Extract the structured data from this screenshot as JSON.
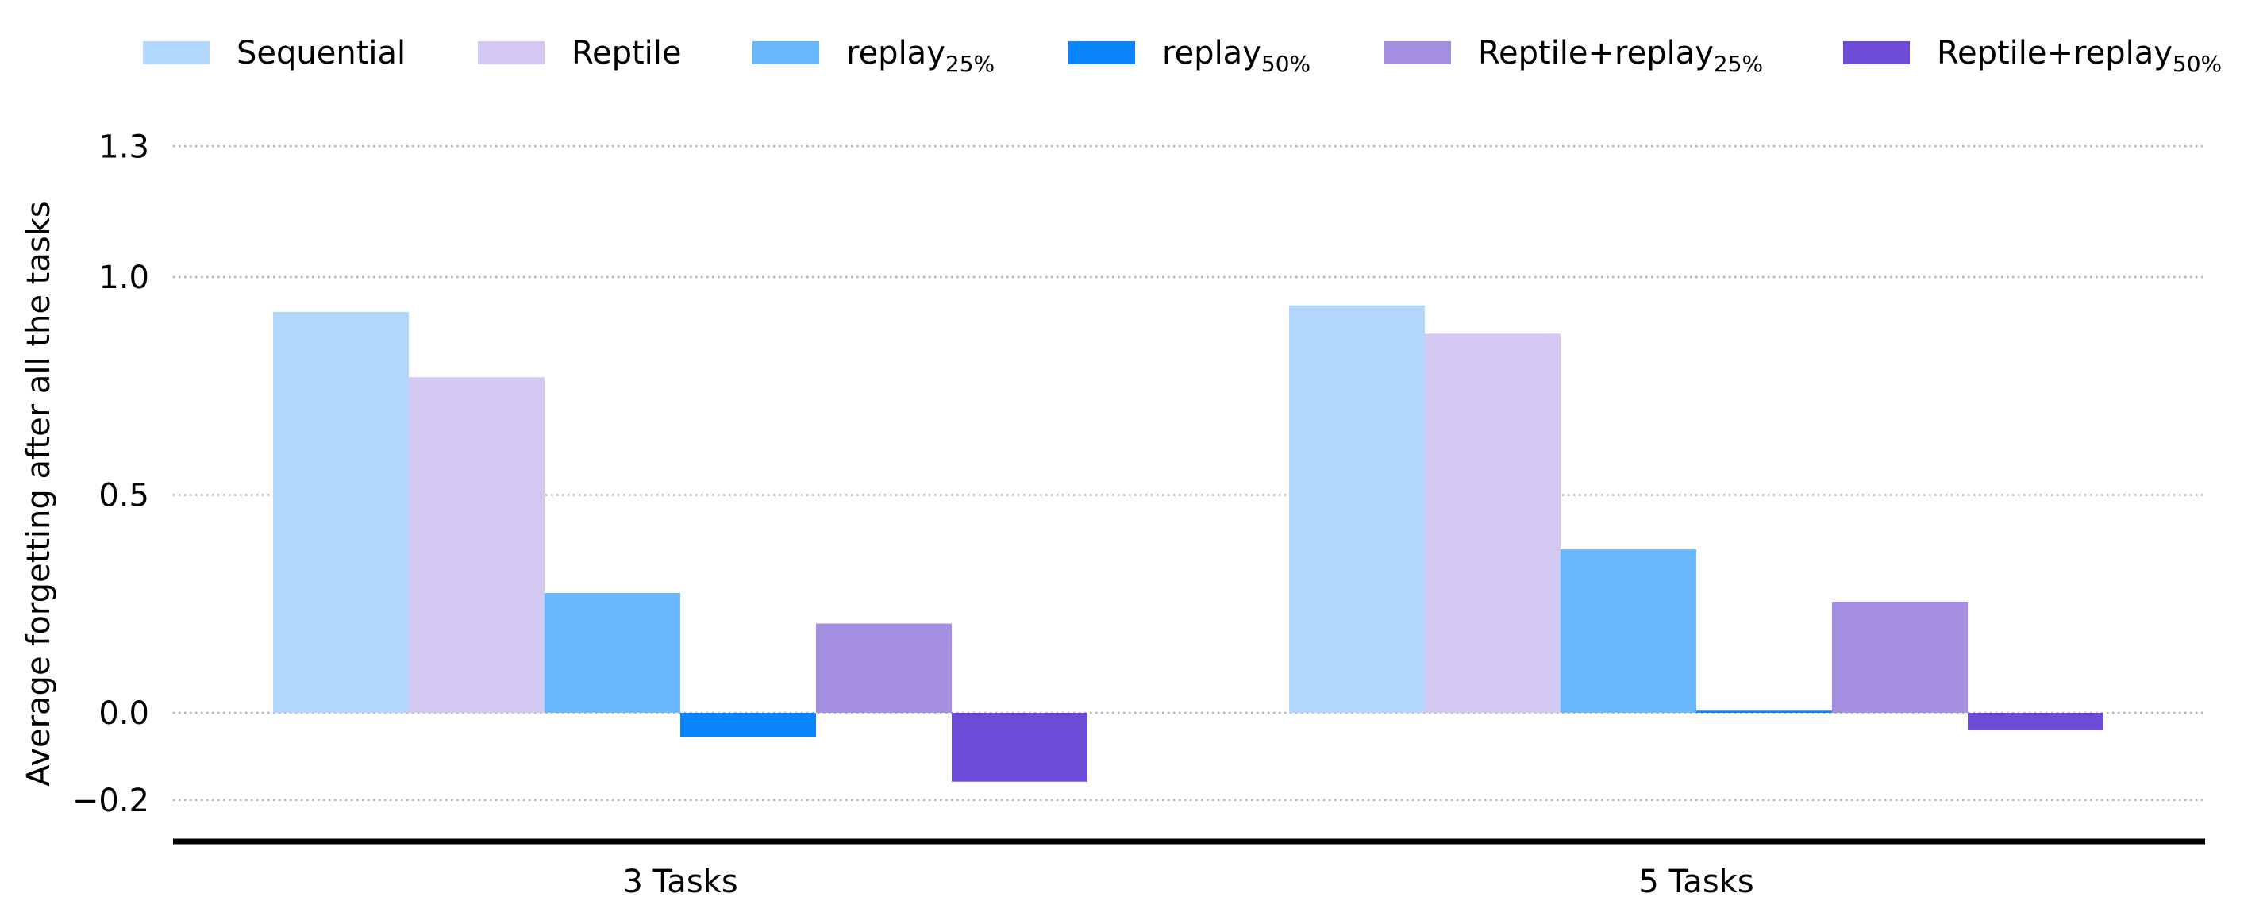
{
  "chart_data": {
    "type": "bar",
    "title": "",
    "xlabel": "",
    "ylabel": "Average forgetting after all the tasks",
    "categories": [
      "3 Tasks",
      "5 Tasks"
    ],
    "ylim": [
      -0.3,
      1.3
    ],
    "yticks": [
      {
        "value": 1.3,
        "label": "1.3"
      },
      {
        "value": 1.0,
        "label": "1.0"
      },
      {
        "value": 0.5,
        "label": "0.5"
      },
      {
        "value": 0.0,
        "label": "0.0"
      },
      {
        "value": -0.2,
        "label": "−0.2"
      }
    ],
    "grid": true,
    "legend_position": "top",
    "series": [
      {
        "name": "Sequential",
        "name_base": "Sequential",
        "name_sub": "",
        "color": "#b1d8fc",
        "values": [
          0.92,
          0.935
        ]
      },
      {
        "name": "Reptile",
        "name_base": "Reptile",
        "name_sub": "",
        "color": "#d3c8f1",
        "values": [
          0.77,
          0.87
        ]
      },
      {
        "name": "replay25%",
        "name_base": "replay",
        "name_sub": "25%",
        "color": "#69b7fd",
        "values": [
          0.275,
          0.375
        ]
      },
      {
        "name": "replay50%",
        "name_base": "replay",
        "name_sub": "50%",
        "color": "#0a85fc",
        "values": [
          -0.055,
          0.005
        ]
      },
      {
        "name": "Reptile+replay25%",
        "name_base": "Reptile+replay",
        "name_sub": "25%",
        "color": "#a58fe3",
        "values": [
          0.205,
          0.255
        ]
      },
      {
        "name": "Reptile+replay50%",
        "name_base": "Reptile+replay",
        "name_sub": "50%",
        "color": "#6c4bd6",
        "values": [
          -0.158,
          -0.04
        ]
      }
    ]
  }
}
